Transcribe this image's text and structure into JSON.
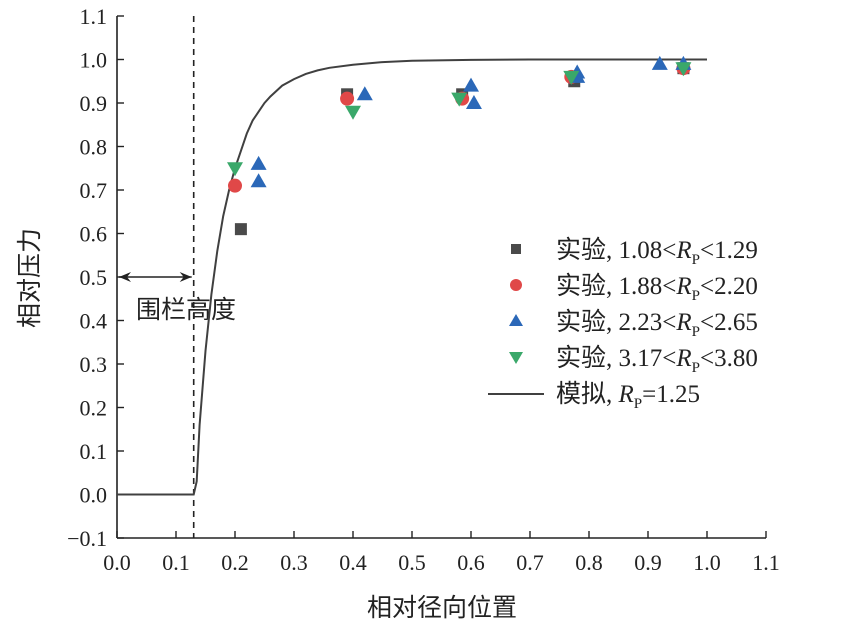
{
  "chart_data": {
    "type": "scatter",
    "xlabel": "相对径向位置",
    "ylabel": "相对压力",
    "xlim": [
      0.0,
      1.1
    ],
    "ylim": [
      -0.1,
      1.1
    ],
    "xticks": [
      "0.0",
      "0.1",
      "0.2",
      "0.3",
      "0.4",
      "0.5",
      "0.6",
      "0.7",
      "0.8",
      "0.9",
      "1.0",
      "1.1"
    ],
    "yticks": [
      "−0.1",
      "0.0",
      "0.1",
      "0.2",
      "0.3",
      "0.4",
      "0.5",
      "0.6",
      "0.7",
      "0.8",
      "0.9",
      "1.0",
      "1.1"
    ],
    "grid": false,
    "legend_position": "right",
    "annotation": {
      "text": "围栏高度",
      "fence_x": 0.13,
      "arrow_y": 0.5
    },
    "series": [
      {
        "name_prefix": "实验, 1.08<",
        "name_rp": "R",
        "name_sub": "P",
        "name_suffix": "<1.29",
        "marker": "square",
        "color": "#4a4a4a",
        "points": [
          [
            0.21,
            0.61
          ],
          [
            0.39,
            0.92
          ],
          [
            0.585,
            0.92
          ],
          [
            0.775,
            0.95
          ],
          [
            0.96,
            0.98
          ]
        ]
      },
      {
        "name_prefix": "实验, 1.88<",
        "name_rp": "R",
        "name_sub": "P",
        "name_suffix": "<2.20",
        "marker": "circle",
        "color": "#e04848",
        "points": [
          [
            0.2,
            0.71
          ],
          [
            0.39,
            0.91
          ],
          [
            0.585,
            0.91
          ],
          [
            0.77,
            0.96
          ],
          [
            0.96,
            0.98
          ]
        ]
      },
      {
        "name_prefix": "实验, 2.23<",
        "name_rp": "R",
        "name_sub": "P",
        "name_suffix": "<2.65",
        "marker": "triangle-up",
        "color": "#2b68b8",
        "points": [
          [
            0.24,
            0.76
          ],
          [
            0.24,
            0.72
          ],
          [
            0.42,
            0.92
          ],
          [
            0.6,
            0.94
          ],
          [
            0.605,
            0.9
          ],
          [
            0.78,
            0.97
          ],
          [
            0.78,
            0.96
          ],
          [
            0.92,
            0.99
          ],
          [
            0.96,
            0.99
          ]
        ]
      },
      {
        "name_prefix": "实验, 3.17<",
        "name_rp": "R",
        "name_sub": "P",
        "name_suffix": "<3.80",
        "marker": "triangle-down",
        "color": "#3aa86a",
        "points": [
          [
            0.2,
            0.75
          ],
          [
            0.4,
            0.88
          ],
          [
            0.58,
            0.91
          ],
          [
            0.77,
            0.96
          ],
          [
            0.96,
            0.98
          ]
        ]
      }
    ],
    "model": {
      "name_prefix": "模拟, ",
      "name_rp": "R",
      "name_sub": "P",
      "name_suffix": "=1.25",
      "color": "#404040",
      "x": [
        0.0,
        0.13,
        0.135,
        0.14,
        0.15,
        0.16,
        0.17,
        0.18,
        0.19,
        0.2,
        0.21,
        0.22,
        0.23,
        0.24,
        0.25,
        0.26,
        0.28,
        0.3,
        0.32,
        0.34,
        0.36,
        0.4,
        0.45,
        0.5,
        0.6,
        0.7,
        0.8,
        0.9,
        1.0
      ],
      "y": [
        0.0,
        0.0,
        0.03,
        0.16,
        0.33,
        0.46,
        0.56,
        0.64,
        0.7,
        0.75,
        0.79,
        0.83,
        0.86,
        0.88,
        0.9,
        0.915,
        0.94,
        0.955,
        0.967,
        0.975,
        0.981,
        0.988,
        0.994,
        0.997,
        0.999,
        1.0,
        1.0,
        1.0,
        1.0
      ]
    }
  }
}
